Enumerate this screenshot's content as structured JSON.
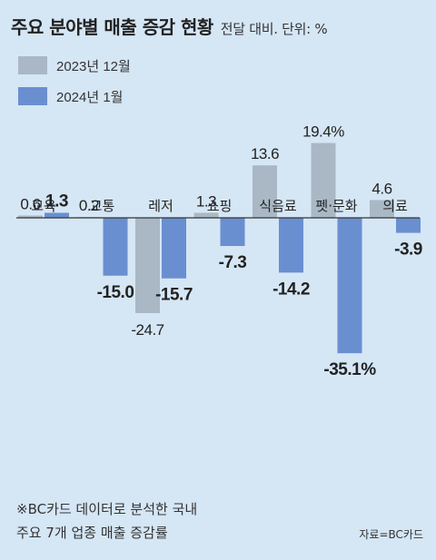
{
  "header": {
    "title": "주요 분야별 매출 증감 현황",
    "subtitle": "전달 대비. 단위: %"
  },
  "colors": {
    "background": "#d5e6f5",
    "series_dec": "#a9b8c4",
    "series_jan": "#6a8fd0",
    "baseline": "#333333"
  },
  "chart_data": {
    "type": "bar",
    "title": "주요 분야별 매출 증감 현황",
    "unit": "%",
    "categories": [
      "교육",
      "교통",
      "레저",
      "쇼핑",
      "식음료",
      "펫·문화",
      "의료"
    ],
    "series": [
      {
        "name": "2023년 12월",
        "values": [
          0.6,
          0.2,
          -24.7,
          1.3,
          13.6,
          19.4,
          4.6
        ],
        "labels": [
          "0.6",
          "0.2",
          "-24.7",
          "1.3",
          "13.6",
          "19.4%",
          "4.6"
        ]
      },
      {
        "name": "2024년 1월",
        "values": [
          1.3,
          -15.0,
          -15.7,
          -7.3,
          -14.2,
          -35.1,
          -3.9
        ],
        "labels": [
          "1.3",
          "-15.0",
          "-15.7",
          "-7.3",
          "-14.2",
          "-35.1%",
          "-3.9"
        ]
      }
    ],
    "ylim": [
      -35.1,
      19.4
    ],
    "grid": false,
    "legend_position": "top-left"
  },
  "footer": {
    "note_line1": "※BC카드 데이터로 분석한 국내",
    "note_line2": "주요 7개 업종 매출 증감률",
    "source": "자료=BC카드"
  }
}
